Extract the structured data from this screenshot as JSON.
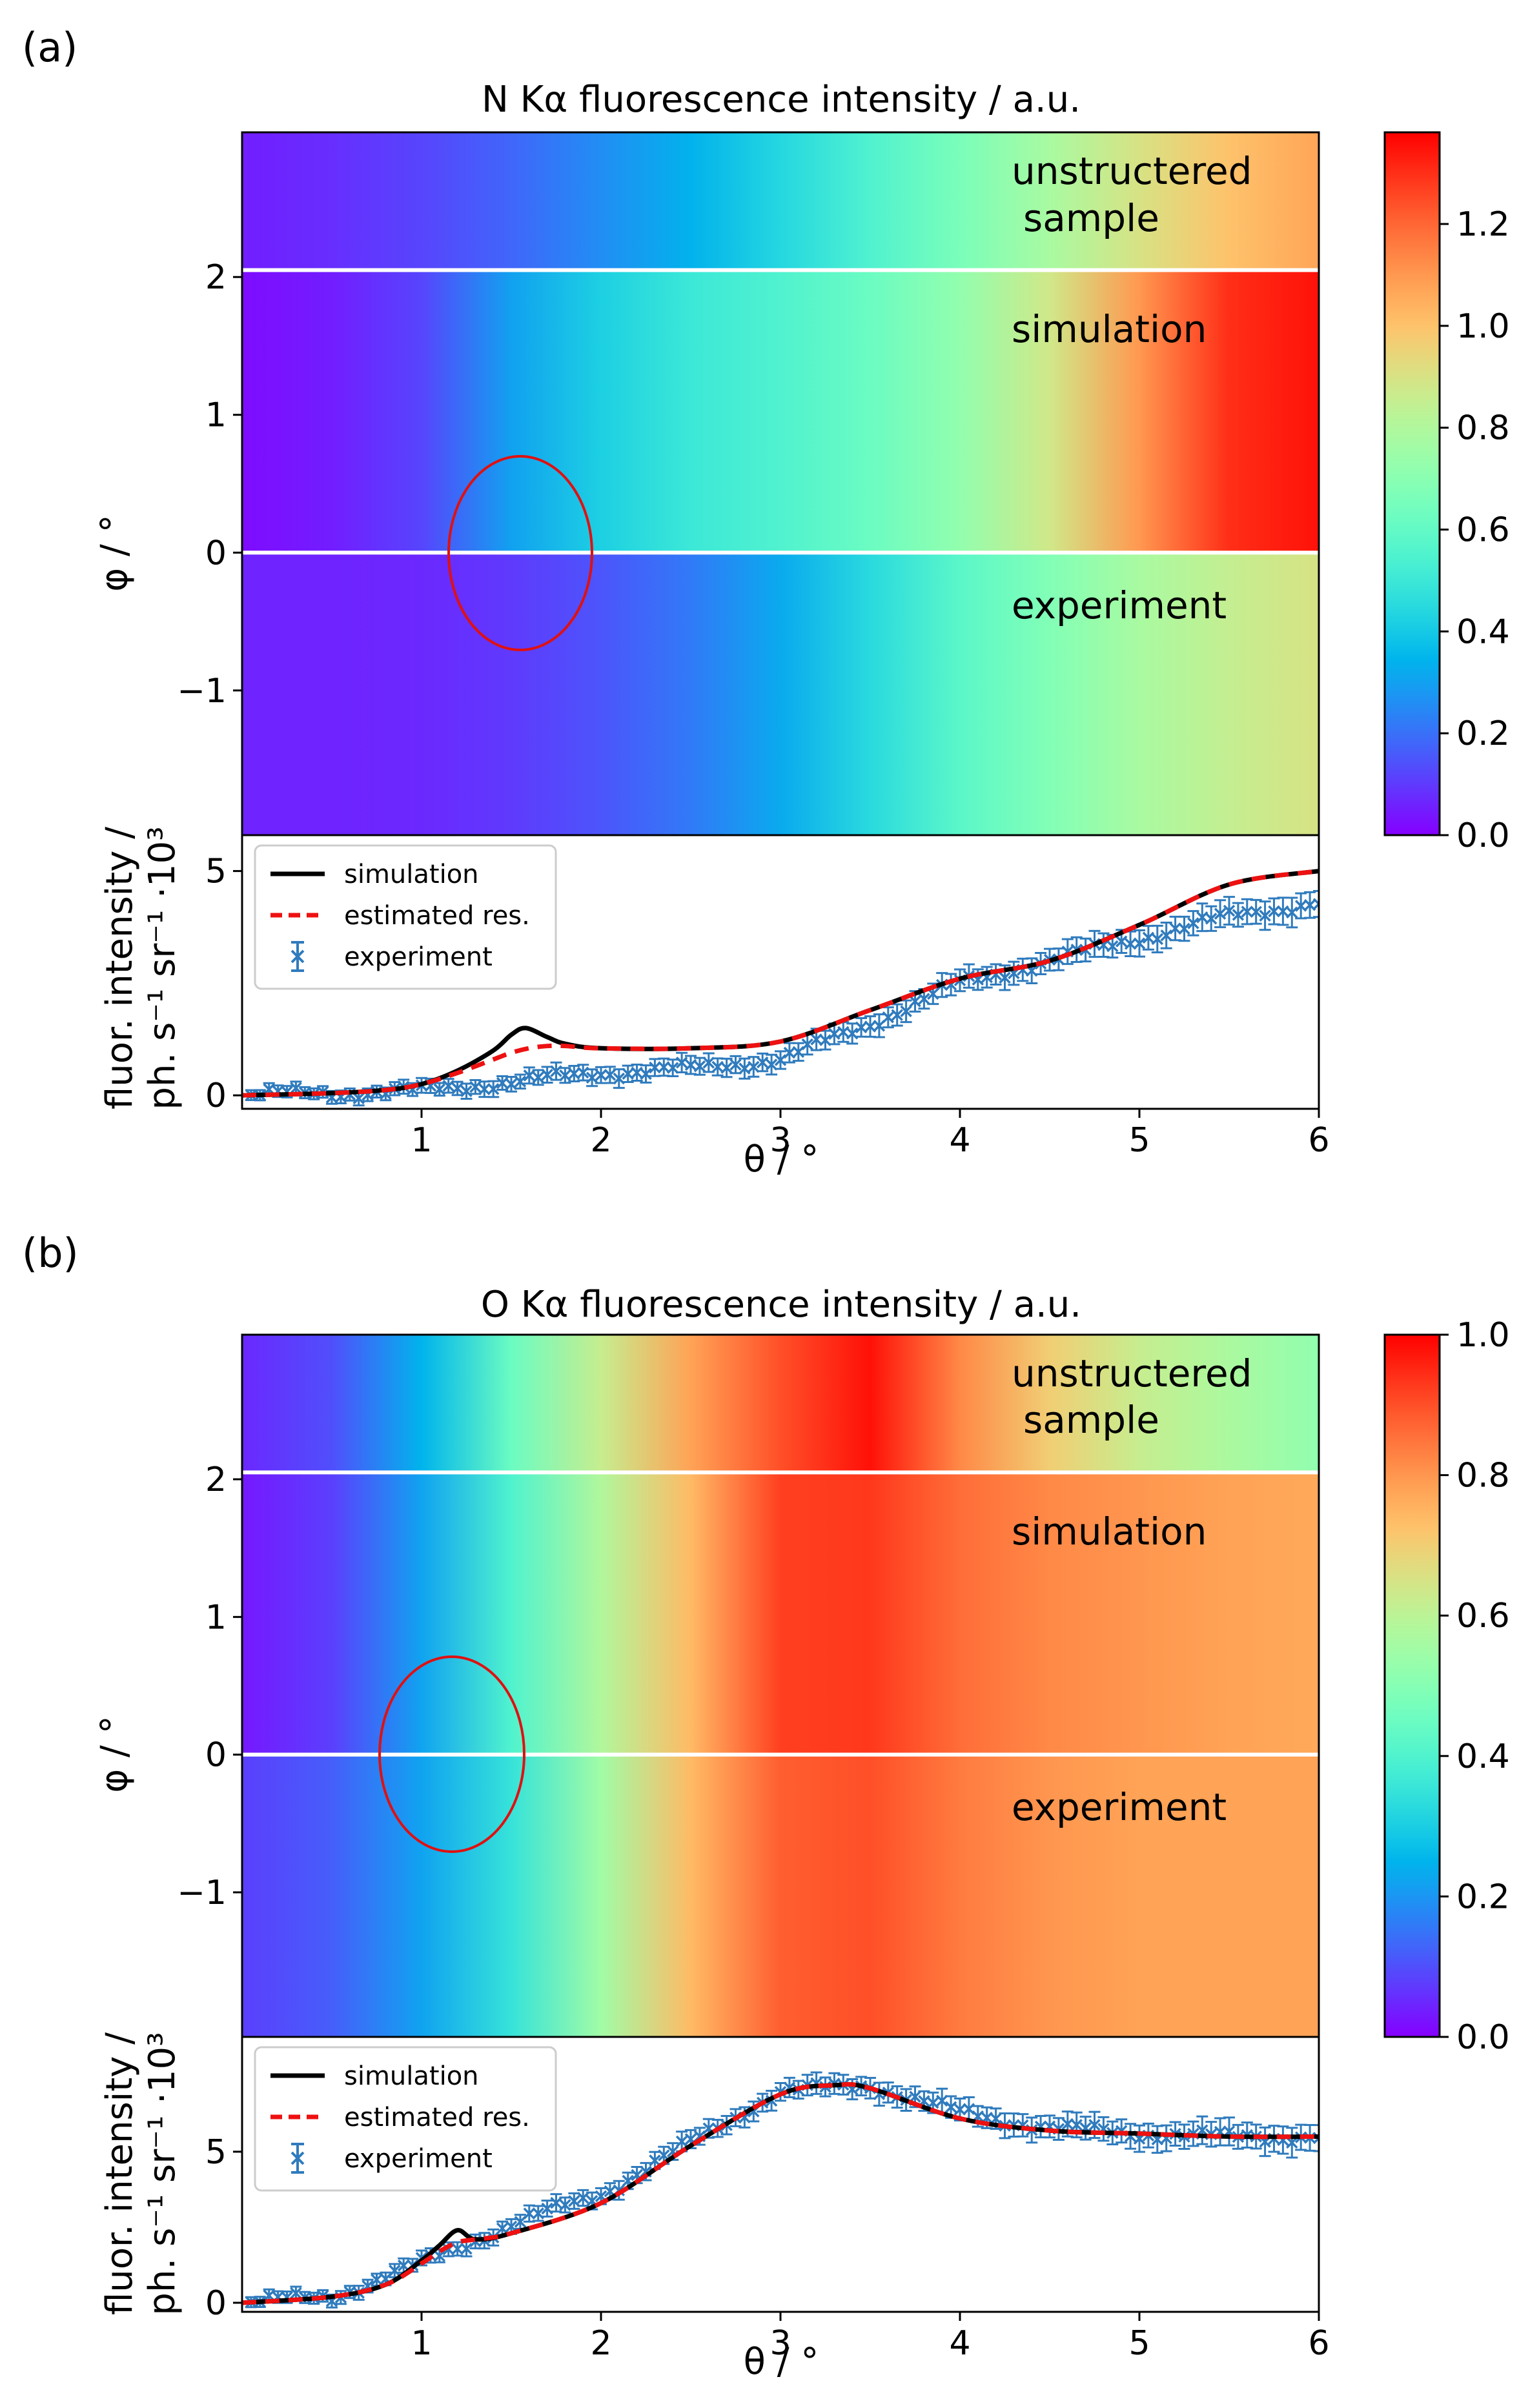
{
  "figure": {
    "panels": [
      {
        "label": "(a)",
        "title": "N Kα fluorescence intensity / a.u.",
        "colorbar_ticks": [
          "0.0",
          "0.2",
          "0.4",
          "0.6",
          "0.8",
          "1.0",
          "1.2"
        ],
        "region_labels": [
          "unstructered",
          "sample",
          "simulation",
          "experiment"
        ]
      },
      {
        "label": "(b)",
        "title": "O Kα fluorescence intensity / a.u.",
        "colorbar_ticks": [
          "0.0",
          "0.2",
          "0.4",
          "0.6",
          "0.8",
          "1.0"
        ],
        "region_labels": [
          "unstructered",
          "sample",
          "simulation",
          "experiment"
        ]
      }
    ]
  },
  "chart_data": [
    {
      "type": "heatmap",
      "title": "N Kα fluorescence intensity / a.u.",
      "xlim": [
        0,
        6
      ],
      "ylabel": "φ / °",
      "ylim": [
        -2.05,
        3.05
      ],
      "yticks": [
        "−1",
        "0",
        "1",
        "2"
      ],
      "colorscale": "rainbow",
      "clim": [
        0,
        1.38
      ],
      "colorbar_ticks": [
        0.0,
        0.2,
        0.4,
        0.6,
        0.8,
        1.0,
        1.2
      ],
      "regions": [
        {
          "name": "unstructered sample",
          "phi_range": [
            2.05,
            3.05
          ]
        },
        {
          "name": "simulation",
          "phi_range": [
            0,
            2.05
          ]
        },
        {
          "name": "experiment",
          "phi_range": [
            -2.05,
            0
          ]
        }
      ],
      "annotation": "red ellipse near θ ≈ 1.55, φ ≈ 0",
      "profiles": {
        "theta": [
          0,
          0.5,
          1,
          1.5,
          2,
          2.5,
          3,
          3.5,
          4,
          4.5,
          5,
          5.5,
          6
        ],
        "unstructured": [
          0.05,
          0.08,
          0.12,
          0.18,
          0.26,
          0.34,
          0.44,
          0.55,
          0.66,
          0.78,
          0.9,
          1.0,
          1.07
        ],
        "simulation": [
          0.02,
          0.05,
          0.12,
          0.3,
          0.42,
          0.5,
          0.55,
          0.62,
          0.72,
          0.88,
          1.1,
          1.3,
          1.35
        ],
        "experiment": [
          0.06,
          0.06,
          0.07,
          0.1,
          0.15,
          0.22,
          0.32,
          0.45,
          0.58,
          0.68,
          0.78,
          0.85,
          0.9
        ]
      }
    },
    {
      "type": "line",
      "xlabel": "θ / °",
      "ylabel": "fluor. intensity / ph. s⁻¹ sr⁻¹ ·10³",
      "xlim": [
        0,
        6
      ],
      "ylim": [
        -0.3,
        5.8
      ],
      "xticks": [
        "1",
        "2",
        "3",
        "4",
        "5",
        "6"
      ],
      "yticks": [
        "0",
        "5"
      ],
      "legend": "upper-left",
      "series": [
        {
          "name": "simulation",
          "style": "solid black",
          "x": [
            0,
            0.5,
            0.8,
            1.0,
            1.2,
            1.4,
            1.5,
            1.58,
            1.7,
            1.8,
            2.0,
            2.5,
            3.0,
            3.5,
            4.0,
            4.5,
            5.0,
            5.5,
            6.0
          ],
          "y": [
            0,
            0.05,
            0.12,
            0.25,
            0.55,
            1.0,
            1.35,
            1.5,
            1.3,
            1.15,
            1.05,
            1.05,
            1.2,
            1.9,
            2.6,
            3.0,
            3.8,
            4.7,
            5.0
          ]
        },
        {
          "name": "estimated res.",
          "style": "dashed red",
          "x": [
            0,
            0.5,
            0.8,
            1.0,
            1.2,
            1.4,
            1.5,
            1.6,
            1.7,
            1.8,
            2.0,
            2.5,
            3.0,
            3.5,
            4.0,
            4.5,
            5.0,
            5.5,
            6.0
          ],
          "y": [
            0,
            0.05,
            0.12,
            0.25,
            0.5,
            0.8,
            0.95,
            1.05,
            1.1,
            1.1,
            1.05,
            1.05,
            1.2,
            1.9,
            2.6,
            3.0,
            3.8,
            4.7,
            5.0
          ]
        },
        {
          "name": "experiment",
          "style": "errorbar markers",
          "x": [
            0,
            0.5,
            1.0,
            1.5,
            2.0,
            2.5,
            3.0,
            3.5,
            4.0,
            4.5,
            5.0,
            5.5,
            6.0
          ],
          "y": [
            0,
            0.05,
            0.1,
            0.3,
            0.5,
            0.6,
            0.8,
            1.6,
            2.5,
            3.0,
            3.5,
            4.0,
            4.3
          ]
        }
      ]
    },
    {
      "type": "heatmap",
      "title": "O Kα fluorescence intensity / a.u.",
      "xlim": [
        0,
        6
      ],
      "ylabel": "φ / °",
      "ylim": [
        -2.05,
        3.05
      ],
      "yticks": [
        "−1",
        "0",
        "1",
        "2"
      ],
      "colorscale": "rainbow",
      "clim": [
        0,
        1.0
      ],
      "colorbar_ticks": [
        0.0,
        0.2,
        0.4,
        0.6,
        0.8,
        1.0
      ],
      "regions": [
        {
          "name": "unstructered sample",
          "phi_range": [
            2.05,
            3.05
          ]
        },
        {
          "name": "simulation",
          "phi_range": [
            0,
            2.05
          ]
        },
        {
          "name": "experiment",
          "phi_range": [
            -2.05,
            0
          ]
        }
      ],
      "annotation": "red ellipse near θ ≈ 1.2, φ ≈ 0",
      "profiles": {
        "theta": [
          0,
          0.5,
          1,
          1.5,
          2,
          2.5,
          3,
          3.5,
          4,
          4.5,
          5,
          5.5,
          6
        ],
        "unstructured": [
          0.05,
          0.1,
          0.25,
          0.45,
          0.62,
          0.78,
          0.9,
          0.98,
          0.82,
          0.7,
          0.62,
          0.57,
          0.52
        ],
        "simulation": [
          0.03,
          0.08,
          0.22,
          0.4,
          0.58,
          0.74,
          0.92,
          0.93,
          0.86,
          0.82,
          0.8,
          0.78,
          0.77
        ],
        "experiment": [
          0.08,
          0.12,
          0.22,
          0.35,
          0.55,
          0.74,
          0.88,
          0.9,
          0.84,
          0.8,
          0.78,
          0.78,
          0.78
        ]
      }
    },
    {
      "type": "line",
      "xlabel": "θ / °",
      "ylabel": "fluor. intensity / ph. s⁻¹ sr⁻¹ ·10³",
      "xlim": [
        0,
        6
      ],
      "ylim": [
        -0.3,
        8.8
      ],
      "xticks": [
        "1",
        "2",
        "3",
        "4",
        "5",
        "6"
      ],
      "yticks": [
        "0",
        "5"
      ],
      "legend": "upper-left",
      "series": [
        {
          "name": "simulation",
          "style": "solid black",
          "x": [
            0,
            0.5,
            0.8,
            1.0,
            1.1,
            1.2,
            1.3,
            1.5,
            2.0,
            2.5,
            3.0,
            3.3,
            3.5,
            4.0,
            4.5,
            5.0,
            5.5,
            6.0
          ],
          "y": [
            0,
            0.2,
            0.6,
            1.4,
            1.9,
            2.4,
            2.1,
            2.3,
            3.3,
            5.2,
            6.9,
            7.2,
            7.1,
            6.1,
            5.7,
            5.6,
            5.5,
            5.5
          ]
        },
        {
          "name": "estimated res.",
          "style": "dashed red",
          "x": [
            0,
            0.5,
            0.8,
            1.0,
            1.1,
            1.2,
            1.3,
            1.5,
            2.0,
            2.5,
            3.0,
            3.3,
            3.5,
            4.0,
            4.5,
            5.0,
            5.5,
            6.0
          ],
          "y": [
            0,
            0.2,
            0.6,
            1.3,
            1.7,
            2.0,
            2.1,
            2.3,
            3.3,
            5.2,
            6.9,
            7.2,
            7.1,
            6.1,
            5.7,
            5.6,
            5.5,
            5.5
          ]
        },
        {
          "name": "experiment",
          "style": "errorbar markers",
          "x": [
            0,
            0.5,
            1.0,
            1.5,
            2.0,
            2.5,
            3.0,
            3.5,
            4.0,
            4.5,
            5.0,
            5.5,
            6.0
          ],
          "y": [
            0,
            0.2,
            1.3,
            2.6,
            3.6,
            5.3,
            7.0,
            7.2,
            6.3,
            5.8,
            5.6,
            5.5,
            5.5
          ]
        }
      ]
    }
  ]
}
